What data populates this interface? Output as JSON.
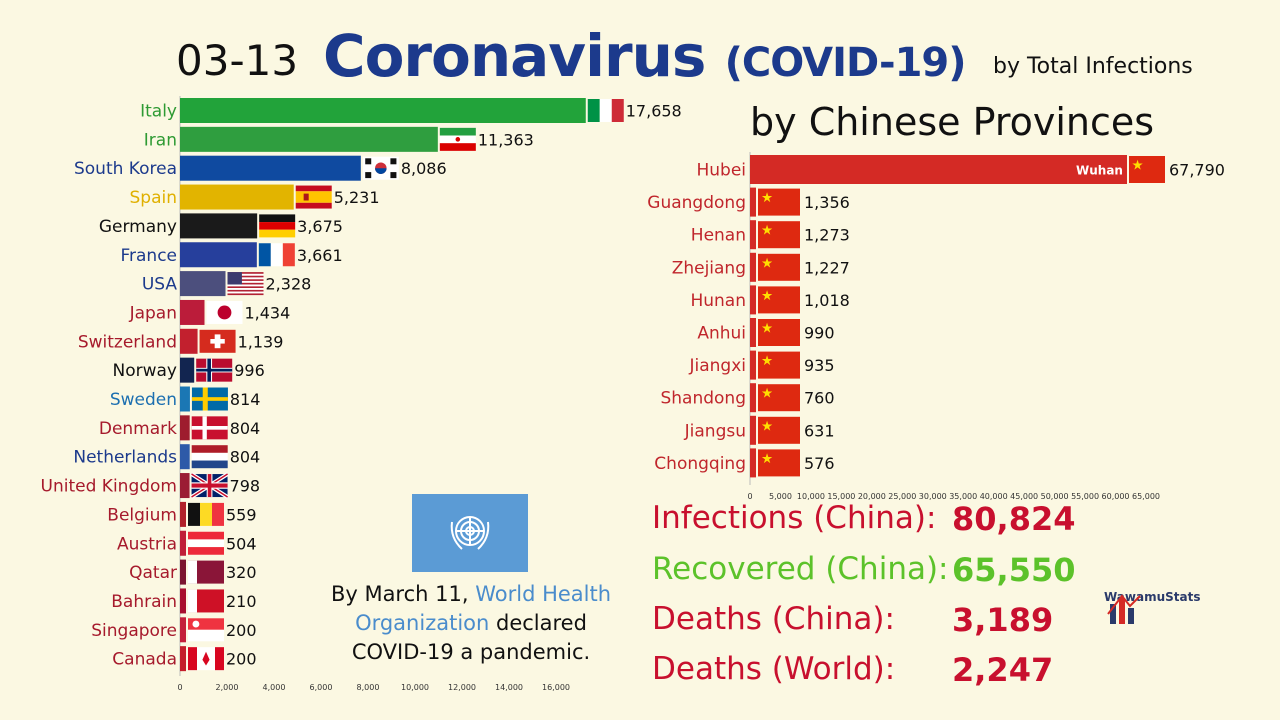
{
  "header": {
    "date": "03-13",
    "title_main": "Coronavirus",
    "title_sub": "(COVID-19)",
    "byline": "by Total Infections"
  },
  "chart_data": [
    {
      "type": "bar",
      "title": "",
      "xlim": [
        0,
        18000
      ],
      "xticks": [
        "0",
        "2,000",
        "4,000",
        "6,000",
        "8,000",
        "10,000",
        "12,000",
        "14,000",
        "16,000"
      ],
      "categories": [
        "Italy",
        "Iran",
        "South Korea",
        "Spain",
        "Germany",
        "France",
        "USA",
        "Japan",
        "Switzerland",
        "Norway",
        "Sweden",
        "Denmark",
        "Netherlands",
        "United Kingdom",
        "Belgium",
        "Austria",
        "Qatar",
        "Bahrain",
        "Singapore",
        "Canada"
      ],
      "values": [
        17658,
        11363,
        8086,
        5231,
        3675,
        3661,
        2328,
        1434,
        1139,
        996,
        814,
        804,
        804,
        798,
        559,
        504,
        320,
        210,
        200,
        200
      ],
      "value_labels": [
        "17,658",
        "11,363",
        "8,086",
        "5,231",
        "3,675",
        "3,661",
        "2,328",
        "1,434",
        "1,139",
        "996",
        "814",
        "804",
        "804",
        "798",
        "559",
        "504",
        "320",
        "210",
        "200",
        "200"
      ],
      "bar_colors": [
        "#22a33a",
        "#2f9e3f",
        "#0f4aa0",
        "#e2b400",
        "#1a1a1a",
        "#263f9c",
        "#4c4f7d",
        "#bb1c3a",
        "#c2202e",
        "#122550",
        "#1b77b4",
        "#9e1c2e",
        "#2e5aa8",
        "#9b1c34",
        "#b0202a",
        "#c01e38",
        "#7c1431",
        "#a81030",
        "#c41f3a",
        "#c41e2a"
      ],
      "label_colors": [
        "#2e9a33",
        "#2e9a33",
        "#1c3a8c",
        "#e0b000",
        "#111111",
        "#1c3a8c",
        "#1c3a8c",
        "#a61a2c",
        "#a61a2c",
        "#111111",
        "#1c6fb0",
        "#a61a2c",
        "#1c3a8c",
        "#a61a2c",
        "#a61a2c",
        "#a61a2c",
        "#a61a2c",
        "#a61a2c",
        "#a61a2c",
        "#a61a2c"
      ]
    },
    {
      "type": "bar",
      "title": "by Chinese Provinces",
      "xlim": [
        0,
        68500
      ],
      "xticks": [
        "0",
        "5,000",
        "10,000",
        "15,000",
        "20,000",
        "25,000",
        "30,000",
        "35,000",
        "40,000",
        "45,000",
        "50,000",
        "55,000",
        "60,000",
        "65,000"
      ],
      "categories": [
        "Hubei",
        "Guangdong",
        "Henan",
        "Zhejiang",
        "Hunan",
        "Anhui",
        "Jiangxi",
        "Shandong",
        "Jiangsu",
        "Chongqing"
      ],
      "values": [
        67790,
        1356,
        1273,
        1227,
        1018,
        990,
        935,
        760,
        631,
        576
      ],
      "value_labels": [
        "67,790",
        "1,356",
        "1,273",
        "1,227",
        "1,018",
        "990",
        "935",
        "760",
        "631",
        "576"
      ],
      "annotation": "Wuhan",
      "bar_color": "#d42a25",
      "label_color": "#c0262c"
    }
  ],
  "stats": [
    {
      "label": "Infections (China):",
      "value": "80,824",
      "color": "#c8102e"
    },
    {
      "label": "Recovered (China):",
      "value": "65,550",
      "color": "#5cc22a"
    },
    {
      "label": "Deaths (China):",
      "value": "3,189",
      "color": "#c8102e"
    },
    {
      "label": "Deaths (World):",
      "value": "2,247",
      "color": "#c8102e"
    }
  ],
  "note": {
    "prefix": "By March 11, ",
    "highlight": "World Health Organization",
    "suffix": " declared COVID-19 a pandemic."
  },
  "logo": {
    "text": "WawamuStats"
  }
}
